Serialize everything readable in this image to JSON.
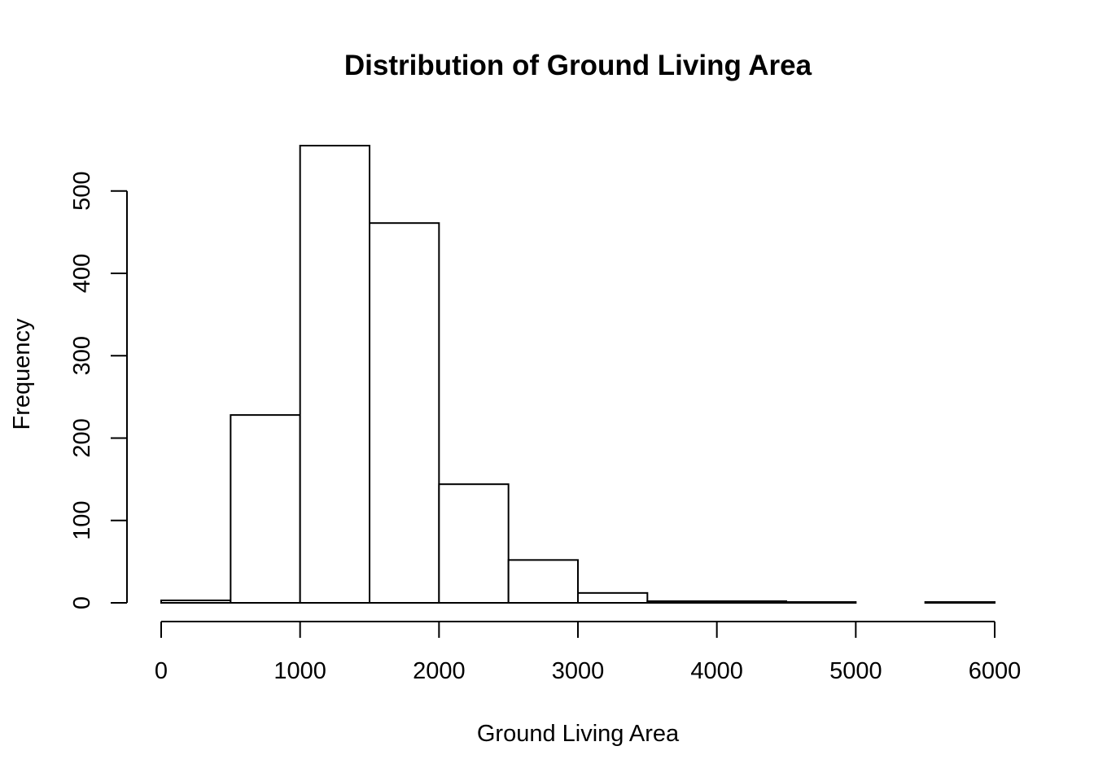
{
  "chart_data": {
    "type": "bar",
    "title": "Distribution of Ground Living Area",
    "xlabel": "Ground Living Area",
    "ylabel": "Frequency",
    "bin_edges": [
      0,
      500,
      1000,
      1500,
      2000,
      2500,
      3000,
      3500,
      4000,
      4500,
      5000,
      5500,
      6000
    ],
    "values": [
      3,
      228,
      555,
      461,
      144,
      52,
      12,
      2,
      2,
      1,
      0,
      1
    ],
    "xlim": [
      0,
      6000
    ],
    "ylim": [
      0,
      555
    ],
    "x_ticks": [
      0,
      1000,
      2000,
      3000,
      4000,
      5000,
      6000
    ],
    "x_tick_labels": [
      "0",
      "1000",
      "2000",
      "3000",
      "4000",
      "5000",
      "6000"
    ],
    "y_ticks": [
      0,
      100,
      200,
      300,
      400,
      500
    ],
    "y_tick_labels": [
      "0",
      "100",
      "200",
      "300",
      "400",
      "500"
    ],
    "grid": false,
    "legend": "none",
    "bar_fill": "#ffffff",
    "bar_stroke": "#000000"
  }
}
